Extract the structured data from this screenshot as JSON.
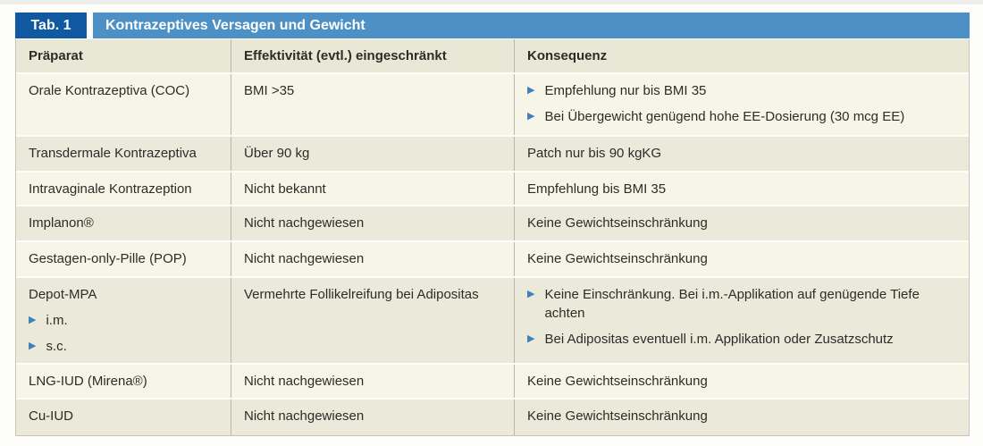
{
  "meta": {
    "table_label": "Tab. 1",
    "table_title": "Kontrazeptives Versagen und Gewicht"
  },
  "columns": [
    "Präparat",
    "Effektivität (evtl.) eingeschränkt",
    "Konsequenz"
  ],
  "rows": [
    {
      "praeparat": "Orale Kontrazeptiva (COC)",
      "praeparat_bullets": [],
      "effektivitaet": "BMI >35",
      "konsequenz_text": "",
      "konsequenz_bullets": [
        "Empfehlung nur bis BMI 35",
        "Bei Übergewicht genügend hohe EE-Dosierung (30 mcg EE)"
      ]
    },
    {
      "praeparat": "Transdermale Kontrazeptiva",
      "praeparat_bullets": [],
      "effektivitaet": "Über 90 kg",
      "konsequenz_text": "Patch nur bis 90 kgKG",
      "konsequenz_bullets": []
    },
    {
      "praeparat": "Intravaginale Kontrazeption",
      "praeparat_bullets": [],
      "effektivitaet": "Nicht bekannt",
      "konsequenz_text": "Empfehlung bis BMI 35",
      "konsequenz_bullets": []
    },
    {
      "praeparat": "Implanon®",
      "praeparat_bullets": [],
      "effektivitaet": "Nicht nachgewiesen",
      "konsequenz_text": "Keine Gewichtseinschränkung",
      "konsequenz_bullets": []
    },
    {
      "praeparat": "Gestagen-only-Pille (POP)",
      "praeparat_bullets": [],
      "effektivitaet": "Nicht nachgewiesen",
      "konsequenz_text": "Keine Gewichtseinschränkung",
      "konsequenz_bullets": []
    },
    {
      "praeparat": "Depot-MPA",
      "praeparat_bullets": [
        "i.m.",
        "s.c."
      ],
      "effektivitaet": "Vermehrte Follikelreifung bei Adipositas",
      "konsequenz_text": "",
      "konsequenz_bullets": [
        "Keine Einschränkung. Bei i.m.-Applikation auf genügende Tiefe achten",
        "Bei Adipositas eventuell i.m. Applikation oder Zusatzschutz"
      ]
    },
    {
      "praeparat": "LNG-IUD (Mirena®)",
      "praeparat_bullets": [],
      "effektivitaet": "Nicht nachgewiesen",
      "konsequenz_text": "Keine Gewichtseinschränkung",
      "konsequenz_bullets": []
    },
    {
      "praeparat": "Cu-IUD",
      "praeparat_bullets": [],
      "effektivitaet": "Nicht nachgewiesen",
      "konsequenz_text": "Keine Gewichtseinschränkung",
      "konsequenz_bullets": []
    }
  ],
  "icons": {
    "bullet_arrow": "▶"
  },
  "colors": {
    "tab_box_blue": "#10589f",
    "title_bar_blue": "#4d90c6",
    "bullet_arrow_blue": "#3f81bb",
    "header_row_bg": "#e9e7d6",
    "row_light_bg": "#f6f5e8",
    "row_dark_bg": "#ebe9da",
    "text": "#2d2c27",
    "divider": "#b9b7aa"
  }
}
